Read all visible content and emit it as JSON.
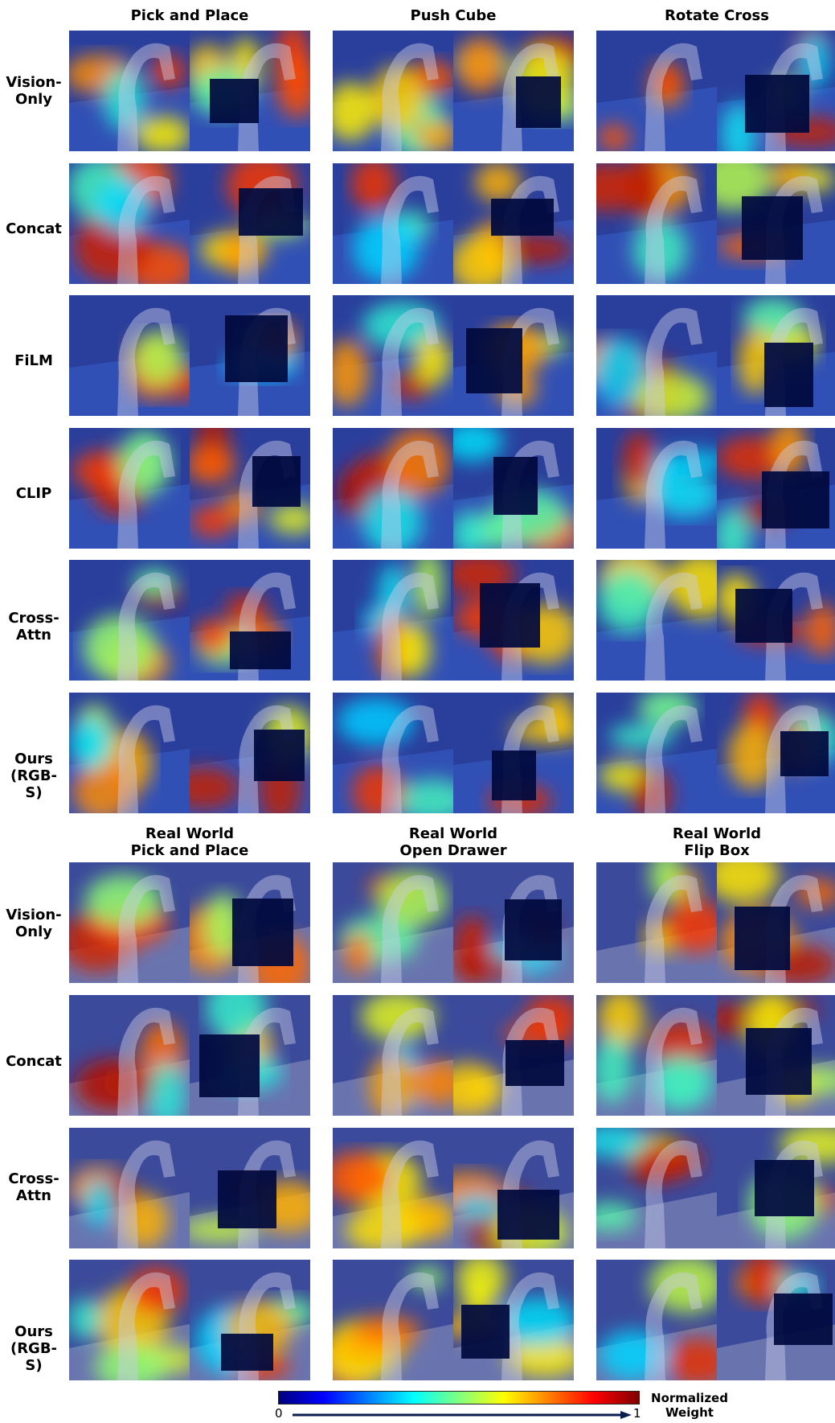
{
  "column_titles": {
    "sim": [
      "Pick and Place",
      "Push Cube",
      "Rotate Cross"
    ],
    "real": [
      "Real World\nPick and Place",
      "Real World\nOpen Drawer",
      "Real World\nFlip Box"
    ]
  },
  "row_labels": {
    "sim": [
      "Vision-\nOnly",
      "Concat",
      "FiLM",
      "CLIP",
      "Cross-\nAttn",
      "Ours\n(RGB-S)"
    ],
    "real": [
      "Vision-\nOnly",
      "Concat",
      "Cross-\nAttn",
      "Ours\n(RGB-S)"
    ]
  },
  "colorbar": {
    "min_label": "0",
    "max_label": "1",
    "title": "Normalized\nWeight",
    "colormap": "jet",
    "colors": [
      "#00007f",
      "#0000ff",
      "#0080ff",
      "#00ffff",
      "#80ff80",
      "#ffff00",
      "#ff8000",
      "#ff0000",
      "#7f0000"
    ]
  }
}
